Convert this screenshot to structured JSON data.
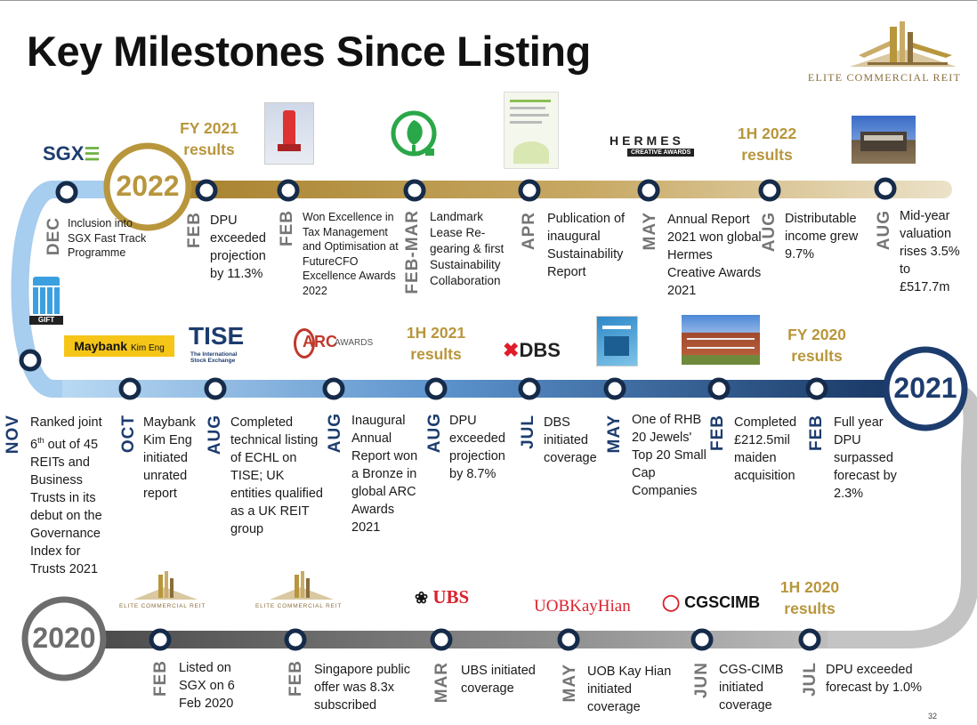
{
  "title": "Key Milestones Since Listing",
  "company_logo": "ELITE COMMERCIAL REIT",
  "page_number": "32",
  "years": {
    "y2022": "2022",
    "y2021": "2021",
    "y2020": "2020"
  },
  "results": {
    "fy2021": "FY 2021 results",
    "h1_2022": "1H 2022 results",
    "h1_2021": "1H 2021 results",
    "fy2020": "FY 2020 results",
    "h1_2020": "1H 2020 results"
  },
  "logos": {
    "sgx": "SGX",
    "maybank": "Maybank",
    "maybank_sub": "Kim Eng",
    "tise": "TISE",
    "tise_sub": "The International Stock Exchange",
    "arc": "ARC",
    "arc_sub": "AWARDS",
    "hermes": "HERMES",
    "hermes_sub": "CREATIVE AWARDS",
    "dbs": "DBS",
    "ubs": "UBS",
    "uob": "UOBKayHian",
    "cgs": "CGSCIMB",
    "gift": "GIFT",
    "ecreit_small": "ELITE COMMERCIAL REIT"
  },
  "milestones_2022": [
    {
      "month": "DEC",
      "text": "Inclusion into SGX Fast Track Programme"
    },
    {
      "month": "FEB",
      "text": "DPU exceeded projection by 11.3%"
    },
    {
      "month": "FEB",
      "text": "Won Excellence in Tax Management and Optimisation at FutureCFO Excellence Awards 2022"
    },
    {
      "month": "FEB-MAR",
      "text": "Landmark Lease Re-gearing & first Sustainability Collaboration"
    },
    {
      "month": "APR",
      "text": "Publication of inaugural Sustainability Report"
    },
    {
      "month": "MAY",
      "text": "Annual Report 2021 won global Hermes Creative Awards 2021"
    },
    {
      "month": "AUG",
      "text": "Distributable income grew 9.7%"
    },
    {
      "month": "AUG",
      "text": "Mid-year valuation rises 3.5% to £517.7m"
    }
  ],
  "milestones_2021": [
    {
      "month": "NOV",
      "text_pre": "Ranked joint 6",
      "text_sup": "th",
      "text_post": " out of 45 REITs and Business Trusts in its debut on the Governance Index for Trusts 2021"
    },
    {
      "month": "OCT",
      "text": "Maybank Kim Eng initiated unrated report"
    },
    {
      "month": "AUG",
      "text": "Completed technical listing of ECHL on TISE; UK entities qualified as a UK REIT group"
    },
    {
      "month": "AUG",
      "text": "Inaugural Annual Report won a Bronze in global ARC Awards 2021"
    },
    {
      "month": "AUG",
      "text": "DPU exceeded projection by 8.7%"
    },
    {
      "month": "JUL",
      "text": "DBS initiated coverage"
    },
    {
      "month": "MAY",
      "text": "One of RHB 20 Jewels' Top 20 Small Cap Companies"
    },
    {
      "month": "FEB",
      "text": "Completed £212.5mil maiden acquisition"
    },
    {
      "month": "FEB",
      "text": "Full year DPU surpassed forecast by 2.3%"
    }
  ],
  "milestones_2020": [
    {
      "month": "FEB",
      "text": "Listed on SGX on 6 Feb 2020"
    },
    {
      "month": "FEB",
      "text": "Singapore public offer was 8.3x subscribed"
    },
    {
      "month": "MAR",
      "text": "UBS initiated coverage"
    },
    {
      "month": "MAY",
      "text": "UOB Kay Hian initiated coverage"
    },
    {
      "month": "JUN",
      "text": "CGS-CIMB initiated coverage"
    },
    {
      "month": "JUL",
      "text": "DPU exceeded forecast by 1.0%"
    }
  ],
  "colors": {
    "gold": "#b8963c",
    "navy": "#1d3c6e",
    "light_blue": "#9cc8ee",
    "grey": "#9a9a9a",
    "dark_grey": "#555555"
  }
}
